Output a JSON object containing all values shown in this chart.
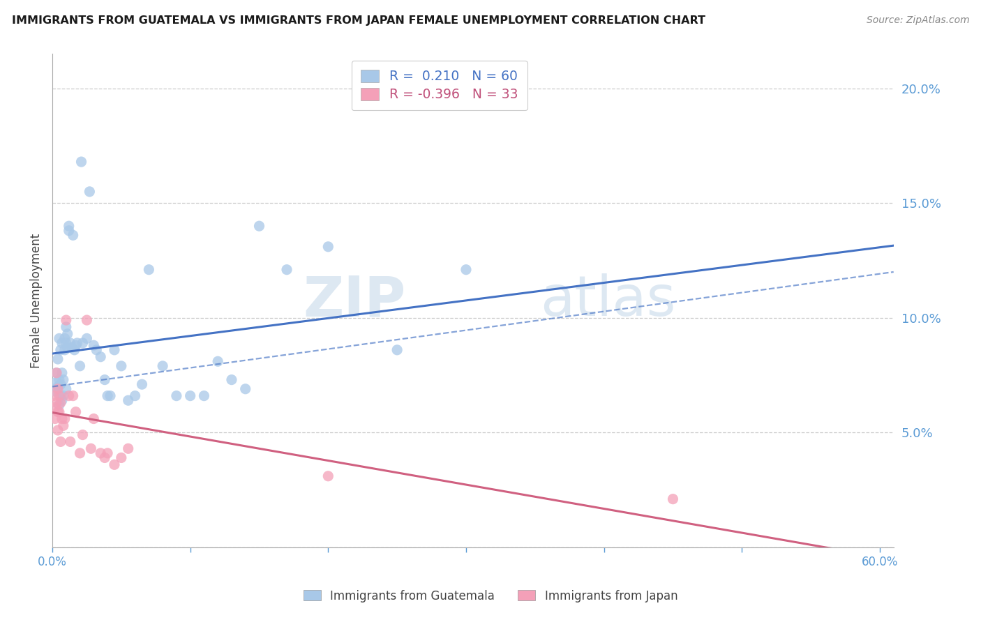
{
  "title": "IMMIGRANTS FROM GUATEMALA VS IMMIGRANTS FROM JAPAN FEMALE UNEMPLOYMENT CORRELATION CHART",
  "source": "Source: ZipAtlas.com",
  "ylabel": "Female Unemployment",
  "right_ytick_labels": [
    "",
    "5.0%",
    "10.0%",
    "15.0%",
    "20.0%"
  ],
  "right_ytick_values": [
    0.0,
    0.05,
    0.1,
    0.15,
    0.2
  ],
  "watermark_zip": "ZIP",
  "watermark_atlas": "atlas",
  "legend_line1_r": "0.210",
  "legend_line1_n": "60",
  "legend_line2_r": "-0.396",
  "legend_line2_n": "33",
  "blue_scatter_color": "#a8c8e8",
  "blue_line_color": "#4472c4",
  "blue_dash_color": "#4472c4",
  "pink_scatter_color": "#f4a0b8",
  "pink_line_color": "#d06080",
  "blue_label": "Immigrants from Guatemala",
  "pink_label": "Immigrants from Japan",
  "guatemala_x": [
    0.002,
    0.003,
    0.003,
    0.004,
    0.004,
    0.005,
    0.005,
    0.005,
    0.006,
    0.006,
    0.006,
    0.007,
    0.007,
    0.007,
    0.008,
    0.008,
    0.009,
    0.009,
    0.01,
    0.01,
    0.01,
    0.011,
    0.011,
    0.012,
    0.012,
    0.013,
    0.014,
    0.015,
    0.016,
    0.017,
    0.018,
    0.02,
    0.021,
    0.022,
    0.025,
    0.027,
    0.03,
    0.032,
    0.035,
    0.038,
    0.04,
    0.042,
    0.045,
    0.05,
    0.055,
    0.06,
    0.065,
    0.07,
    0.08,
    0.09,
    0.1,
    0.11,
    0.12,
    0.13,
    0.14,
    0.15,
    0.17,
    0.2,
    0.25,
    0.3
  ],
  "guatemala_y": [
    0.068,
    0.072,
    0.076,
    0.07,
    0.082,
    0.062,
    0.073,
    0.091,
    0.066,
    0.071,
    0.086,
    0.064,
    0.076,
    0.089,
    0.073,
    0.066,
    0.091,
    0.086,
    0.096,
    0.089,
    0.069,
    0.093,
    0.087,
    0.14,
    0.138,
    0.089,
    0.087,
    0.136,
    0.086,
    0.088,
    0.089,
    0.079,
    0.168,
    0.089,
    0.091,
    0.155,
    0.088,
    0.086,
    0.083,
    0.073,
    0.066,
    0.066,
    0.086,
    0.079,
    0.064,
    0.066,
    0.071,
    0.121,
    0.079,
    0.066,
    0.066,
    0.066,
    0.081,
    0.073,
    0.069,
    0.14,
    0.121,
    0.131,
    0.086,
    0.121
  ],
  "japan_x": [
    0.001,
    0.002,
    0.002,
    0.003,
    0.003,
    0.004,
    0.004,
    0.004,
    0.005,
    0.005,
    0.006,
    0.006,
    0.007,
    0.008,
    0.009,
    0.01,
    0.012,
    0.013,
    0.015,
    0.017,
    0.02,
    0.022,
    0.025,
    0.028,
    0.03,
    0.035,
    0.038,
    0.04,
    0.045,
    0.05,
    0.055,
    0.2,
    0.45
  ],
  "japan_y": [
    0.066,
    0.061,
    0.056,
    0.076,
    0.063,
    0.059,
    0.069,
    0.051,
    0.066,
    0.059,
    0.063,
    0.046,
    0.056,
    0.053,
    0.056,
    0.099,
    0.066,
    0.046,
    0.066,
    0.059,
    0.041,
    0.049,
    0.099,
    0.043,
    0.056,
    0.041,
    0.039,
    0.041,
    0.036,
    0.039,
    0.043,
    0.031,
    0.021
  ],
  "xlim": [
    0.0,
    0.61
  ],
  "ylim": [
    0.0,
    0.215
  ],
  "xtick_positions": [
    0.0,
    0.1,
    0.2,
    0.3,
    0.4,
    0.5,
    0.6
  ],
  "ytick_positions": [
    0.0,
    0.05,
    0.1,
    0.15,
    0.2
  ],
  "scatter_size": 120,
  "scatter_alpha": 0.75
}
